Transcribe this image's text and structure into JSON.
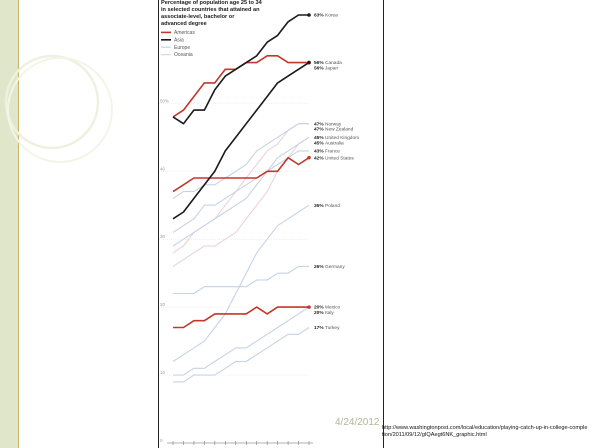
{
  "slide": {
    "date": "4/24/2012",
    "source_url": "http://www.washingtonpost.com/local/education/playing-catch-up-in-college-completion/2011/09/12/gIQAegt6NK_graphic.html"
  },
  "colors": {
    "americas": "#c0392b",
    "asia": "#1a1a1a",
    "europe": "#c5d3e6",
    "oceania": "#ecd2d6"
  },
  "chart_data": {
    "type": "line",
    "title_lines": [
      "Percentage of population age 25 to 34",
      "in selected countries that attained an",
      "associate-level, bachelor or",
      "advanced degree"
    ],
    "legend": [
      {
        "name": "Americas",
        "key": "americas"
      },
      {
        "name": "Asia",
        "key": "asia"
      },
      {
        "name": "Europe",
        "key": "europe"
      },
      {
        "name": "Oceania",
        "key": "oceania"
      }
    ],
    "y_ticks": [
      {
        "label": "50%",
        "value": 50
      },
      {
        "label": "40",
        "value": 40
      },
      {
        "label": "30",
        "value": 30
      },
      {
        "label": "20",
        "value": 20
      },
      {
        "label": "10",
        "value": 10
      },
      {
        "label": "0",
        "value": 0
      }
    ],
    "ylim": [
      0,
      63
    ],
    "x_count": 14,
    "series": [
      {
        "group": "asia",
        "end_label": "63%",
        "country": "Korea",
        "values": [
          48,
          47,
          49,
          49,
          52,
          54,
          55,
          56,
          57,
          59,
          60,
          62,
          63,
          63
        ]
      },
      {
        "group": "americas",
        "end_label": "56%",
        "country": "Canada",
        "values": [
          48,
          49,
          51,
          53,
          53,
          55,
          55,
          56,
          56,
          57,
          57,
          56,
          56,
          56
        ]
      },
      {
        "group": "asia",
        "end_label": "56%",
        "country": "Japan",
        "values": [
          33,
          34,
          36,
          38,
          40,
          43,
          45,
          47,
          49,
          51,
          53,
          54,
          55,
          56
        ]
      },
      {
        "group": "europe",
        "end_label": "47%",
        "country": "Norway",
        "values": [
          36,
          37,
          37,
          38,
          38,
          39,
          40,
          41,
          43,
          44,
          45,
          46,
          47,
          47
        ]
      },
      {
        "group": "oceania",
        "end_label": "47%",
        "country": "New Zealand",
        "values": [
          28,
          29,
          31,
          32,
          33,
          35,
          37,
          39,
          41,
          43,
          44,
          46,
          47,
          47
        ]
      },
      {
        "group": "europe",
        "end_label": "45%",
        "country": "United Kingdom",
        "values": [
          29,
          30,
          31,
          32,
          33,
          34,
          35,
          36,
          38,
          40,
          42,
          43,
          44,
          45
        ]
      },
      {
        "group": "oceania",
        "end_label": "45%",
        "country": "Australia",
        "values": [
          26,
          27,
          28,
          29,
          29,
          30,
          31,
          33,
          35,
          37,
          40,
          42,
          44,
          45
        ]
      },
      {
        "group": "europe",
        "end_label": "43%",
        "country": "France",
        "values": [
          31,
          32,
          33,
          35,
          35,
          36,
          37,
          38,
          39,
          40,
          41,
          42,
          43,
          43
        ]
      },
      {
        "group": "americas",
        "end_label": "42%",
        "country": "United States",
        "values": [
          37,
          38,
          39,
          39,
          39,
          39,
          39,
          39,
          39,
          40,
          40,
          42,
          41,
          42
        ]
      },
      {
        "group": "europe",
        "end_label": "35%",
        "country": "Poland",
        "values": [
          12,
          13,
          14,
          15,
          17,
          19,
          22,
          25,
          28,
          30,
          32,
          33,
          34,
          35
        ]
      },
      {
        "group": "europe",
        "end_label": "26%",
        "country": "Germany",
        "values": [
          22,
          22,
          22,
          23,
          23,
          23,
          23,
          23,
          24,
          24,
          25,
          25,
          26,
          26
        ]
      },
      {
        "group": "americas",
        "end_label": "20%",
        "country": "Mexico",
        "values": [
          17,
          17,
          18,
          18,
          19,
          19,
          19,
          19,
          20,
          19,
          20,
          20,
          20,
          20
        ]
      },
      {
        "group": "europe",
        "end_label": "20%",
        "country": "Italy",
        "values": [
          10,
          10,
          11,
          11,
          12,
          13,
          14,
          14,
          15,
          16,
          17,
          18,
          19,
          20
        ]
      },
      {
        "group": "europe",
        "end_label": "17%",
        "country": "Turkey",
        "values": [
          9,
          9,
          10,
          10,
          10,
          11,
          12,
          12,
          13,
          14,
          15,
          16,
          16,
          17
        ]
      }
    ]
  }
}
